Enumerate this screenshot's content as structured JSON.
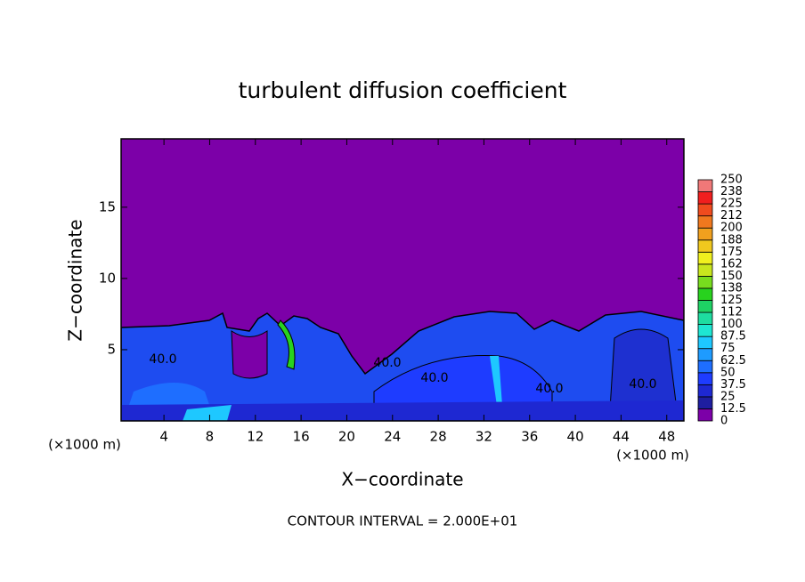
{
  "chart_data": {
    "type": "contour",
    "title": "turbulent diffusion coefficient",
    "xlabel": "X−coordinate",
    "ylabel": "Z−coordinate",
    "x_unit_left": "(×1000 m)",
    "x_unit_right": "(×1000 m)",
    "footer": "CONTOUR INTERVAL = 2.000E+01",
    "xlim": [
      0.25,
      49.5
    ],
    "ylim": [
      0,
      19.8
    ],
    "xticks": [
      4,
      8,
      12,
      16,
      20,
      24,
      28,
      32,
      36,
      40,
      44,
      48
    ],
    "yticks": [
      5,
      10,
      15
    ],
    "contour_labels": [
      "40.0",
      "40.0",
      "40.0",
      "40.0",
      "40.0"
    ],
    "colorbar": {
      "levels": [
        0,
        12.5,
        25,
        37.5,
        50,
        62.5,
        75,
        87.5,
        100,
        112,
        125,
        138,
        150,
        162,
        175,
        188,
        200,
        212,
        225,
        238,
        250
      ],
      "colors": [
        "#7c00a8",
        "#1e1ea0",
        "#1e28d2",
        "#1e3cff",
        "#1e6eff",
        "#1e9bff",
        "#1ec8ff",
        "#1ee6d2",
        "#1edca0",
        "#1ed264",
        "#28d21e",
        "#78dc1e",
        "#c8e61e",
        "#f0f01e",
        "#f0c81e",
        "#f0a01e",
        "#f0781e",
        "#f04b1e",
        "#f01e1e",
        "#f07878"
      ]
    }
  }
}
